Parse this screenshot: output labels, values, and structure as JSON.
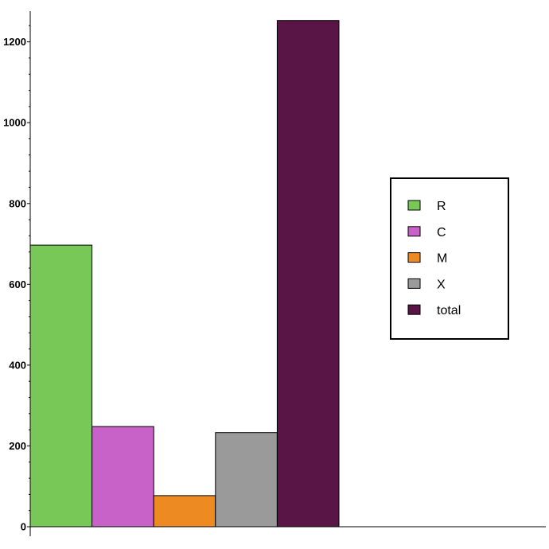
{
  "chart_data": {
    "type": "bar",
    "title": "",
    "xlabel": "",
    "ylabel": "",
    "categories": [
      "R",
      "C",
      "M",
      "X",
      "total"
    ],
    "values": [
      697,
      248,
      77,
      233,
      1253
    ],
    "colors": [
      "#78c858",
      "#c862c8",
      "#ee8a22",
      "#9a9a9a",
      "#581545"
    ],
    "ylim": [
      0,
      1280
    ],
    "yticks": [
      0,
      200,
      400,
      600,
      800,
      1000,
      1200
    ],
    "ytick_labels": [
      "0",
      "200",
      "400",
      "600",
      "800",
      "1000",
      "1200"
    ],
    "grid": false,
    "legend": {
      "placement": "right",
      "entries": [
        "R",
        "C",
        "M",
        "X",
        "total"
      ]
    }
  }
}
